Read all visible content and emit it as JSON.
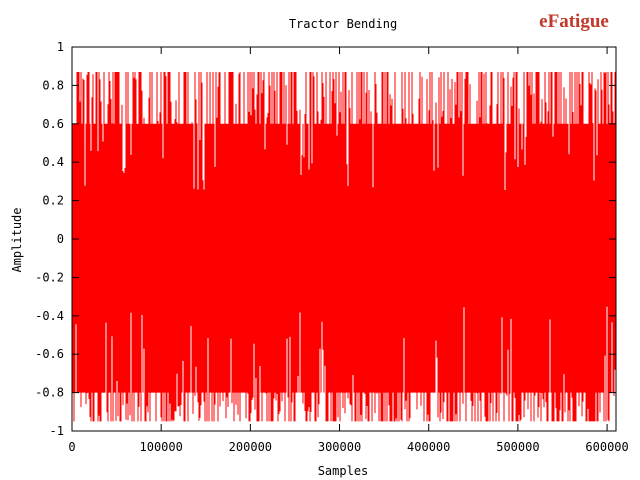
{
  "chart_data": {
    "type": "line",
    "title": "Tractor Bending",
    "xlabel": "Samples",
    "ylabel": "Amplitude",
    "xlim": [
      0,
      610000
    ],
    "ylim": [
      -1,
      1
    ],
    "xticks": [
      0,
      100000,
      200000,
      300000,
      400000,
      500000,
      600000
    ],
    "yticks": [
      -1,
      -0.8,
      -0.6,
      -0.4,
      -0.2,
      0,
      0.2,
      0.4,
      0.6,
      0.8,
      1
    ],
    "grid": false,
    "legend": "none",
    "series": [
      {
        "color": "#ff0000",
        "description": "dense random vibration signal; envelope mostly between about -0.8 and 0.6, frequent peaks to about 0.87 and -0.95",
        "envelope": {
          "max": 0.87,
          "min": -0.95,
          "typical_upper": 0.6,
          "typical_lower": -0.8
        }
      }
    ]
  },
  "logo": {
    "text": "eFatigue",
    "color": "#c0392b"
  }
}
